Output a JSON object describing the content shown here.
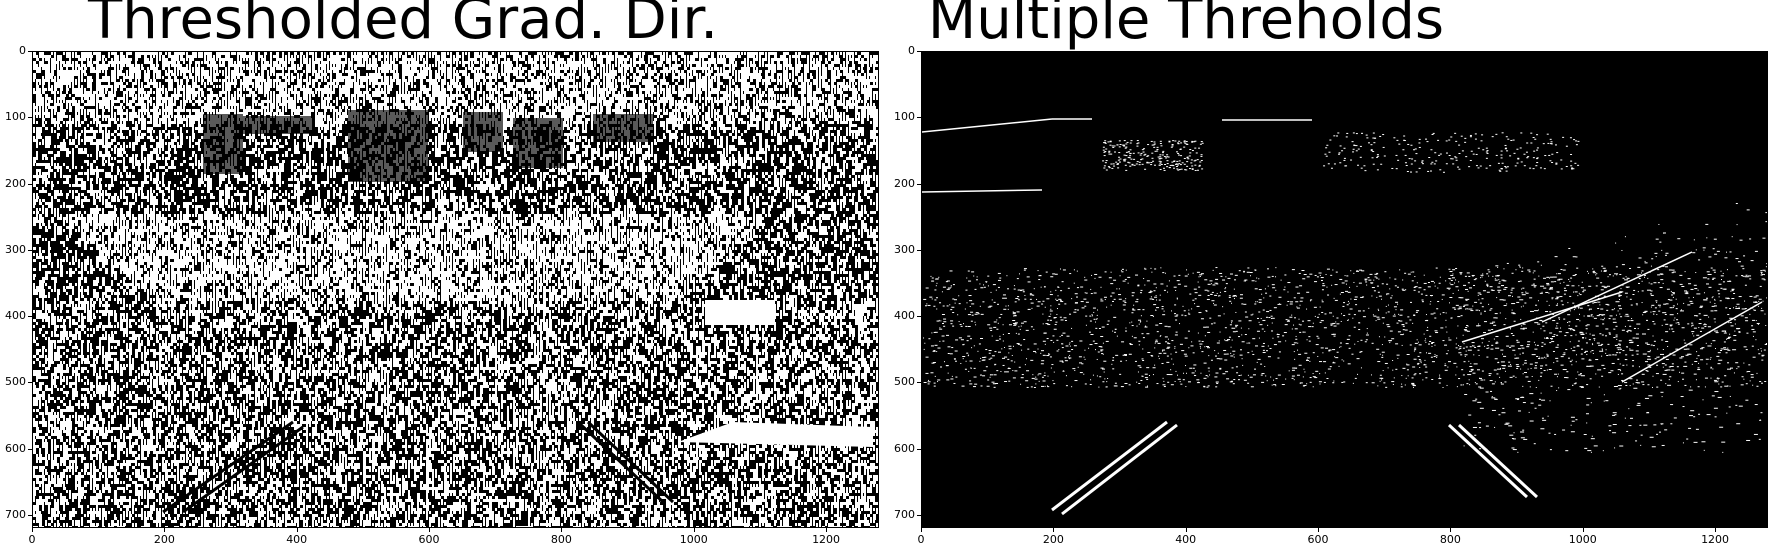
{
  "figure": {
    "panels": [
      {
        "id": "left",
        "title": "Thresholded Grad. Dir.",
        "style": "noisy-dense",
        "x_ticks": [
          0,
          200,
          400,
          600,
          800,
          1000,
          1200
        ],
        "y_ticks": [
          0,
          100,
          200,
          300,
          400,
          500,
          600,
          700
        ],
        "x_range": [
          0,
          1280
        ],
        "y_range": [
          0,
          720
        ]
      },
      {
        "id": "right",
        "title": "Multiple Threholds",
        "style": "sparse-edges",
        "x_ticks": [
          0,
          200,
          400,
          600,
          800,
          1000,
          1200
        ],
        "y_ticks": [
          0,
          100,
          200,
          300,
          400,
          500,
          600,
          700
        ],
        "x_range": [
          0,
          1280
        ],
        "y_range": [
          0,
          720
        ]
      }
    ],
    "colors": {
      "background": "#000000",
      "foreground": "#ffffff",
      "page": "#ffffff"
    }
  }
}
